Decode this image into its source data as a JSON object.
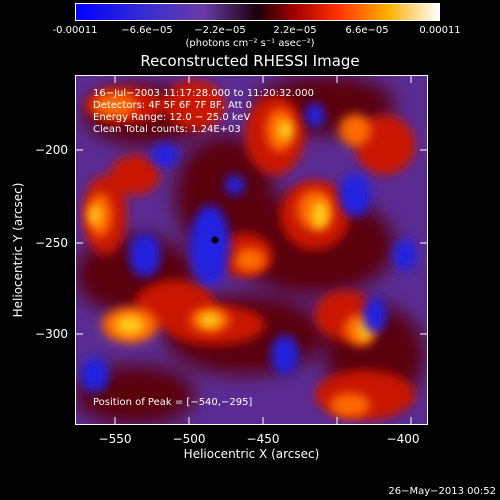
{
  "colorbar": {
    "ticks": [
      "-0.00011",
      "−6.6e−05",
      "−2.2e−05",
      "2.2e−05",
      "6.6e−05",
      "0.00011"
    ],
    "units": "(photons cm⁻² s⁻¹ asec⁻²)"
  },
  "title": "Reconstructed RHESSI Image",
  "info": {
    "line1": "16−Jul−2003 11:17:28.000 to 11:20:32.000",
    "line2": "Detectors: 4F 5F 6F 7F 8F, Att 0",
    "line3": "Energy Range: 12.0 − 25.0 keV",
    "line4": "Clean    Total counts: 1.24E+03",
    "peak": "Position of Peak = [−540,−295]"
  },
  "axes": {
    "xlabel": "Heliocentric X (arcsec)",
    "ylabel": "Heliocentric Y (arcsec)",
    "xticks": [
      "−550",
      "−500",
      "−450",
      "−400"
    ],
    "yticks": [
      "−200",
      "−250",
      "−300"
    ]
  },
  "footer": {
    "date": "26−May−2013 00:52"
  }
}
